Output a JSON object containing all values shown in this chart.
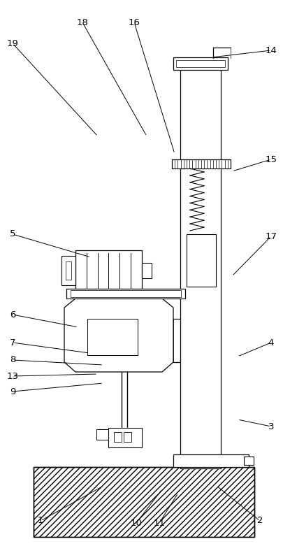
{
  "bg": "#ffffff",
  "lc": "#000000",
  "annotations": [
    [
      "1",
      58,
      745,
      148,
      695
    ],
    [
      "2",
      372,
      745,
      310,
      695
    ],
    [
      "3",
      388,
      610,
      340,
      600
    ],
    [
      "4",
      388,
      490,
      340,
      510
    ],
    [
      "5",
      18,
      335,
      130,
      368
    ],
    [
      "6",
      18,
      450,
      112,
      468
    ],
    [
      "7",
      18,
      490,
      128,
      505
    ],
    [
      "8",
      18,
      515,
      148,
      522
    ],
    [
      "9",
      18,
      560,
      148,
      548
    ],
    [
      "10",
      195,
      748,
      232,
      700
    ],
    [
      "11",
      228,
      748,
      255,
      705
    ],
    [
      "13",
      18,
      538,
      140,
      535
    ],
    [
      "14",
      388,
      72,
      303,
      82
    ],
    [
      "15",
      388,
      228,
      332,
      245
    ],
    [
      "16",
      192,
      32,
      250,
      220
    ],
    [
      "17",
      388,
      338,
      332,
      395
    ],
    [
      "18",
      118,
      32,
      210,
      195
    ],
    [
      "19",
      18,
      62,
      140,
      195
    ]
  ]
}
